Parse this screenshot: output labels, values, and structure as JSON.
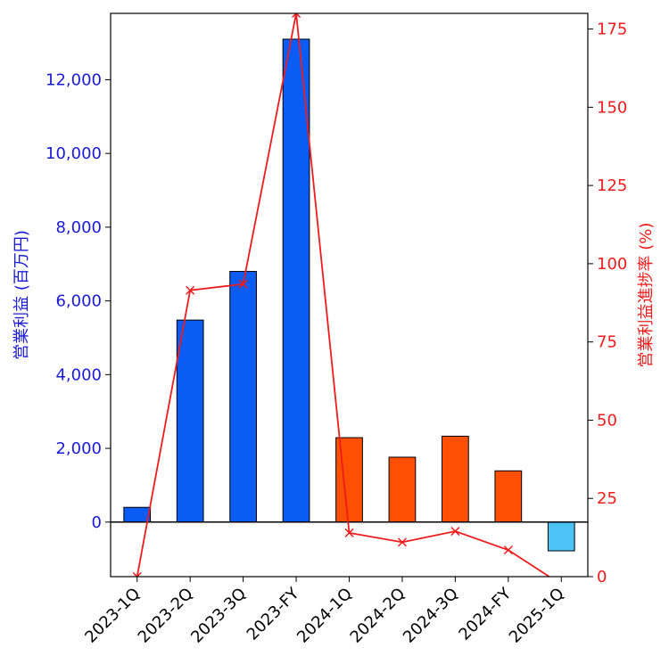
{
  "chart_data": {
    "type": "bar",
    "categories": [
      "2023-1Q",
      "2023-2Q",
      "2023-3Q",
      "2023-FY",
      "2024-1Q",
      "2024-2Q",
      "2024-3Q",
      "2024-FY",
      "2025-1Q"
    ],
    "series": [
      {
        "kind": "bar",
        "axis": "left",
        "values": [
          400,
          5480,
          6800,
          13100,
          2290,
          1760,
          2330,
          1390,
          -780
        ],
        "colors": [
          "#0a5cf5",
          "#0a5cf5",
          "#0a5cf5",
          "#0a5cf5",
          "#ff4f00",
          "#ff4f00",
          "#ff4f00",
          "#ff4f00",
          "#4cc3f5"
        ]
      },
      {
        "kind": "line",
        "axis": "right",
        "marker": "x",
        "color": "#ee1c1c",
        "values": [
          0,
          91.5,
          93.5,
          180,
          14,
          11,
          14.5,
          8.5,
          -2.5
        ]
      }
    ],
    "ylabel": "営業利益 (百万円)",
    "y2label": "営業利益進捗率 (%)",
    "ylim": [
      -1480,
      13800
    ],
    "y2lim": [
      0,
      180
    ],
    "yticks": [
      0,
      2000,
      4000,
      6000,
      8000,
      10000,
      12000
    ],
    "ytick_labels": [
      "0",
      "2,000",
      "4,000",
      "6,000",
      "8,000",
      "10,000",
      "12,000"
    ],
    "y2ticks": [
      0,
      25,
      50,
      75,
      100,
      125,
      150,
      175
    ],
    "y2tick_labels": [
      "0",
      "25",
      "50",
      "75",
      "100",
      "125",
      "150",
      "175"
    ],
    "left_axis_color": "#1a1ad6",
    "right_axis_color": "#ee1c1c",
    "grid": false,
    "zero_line": true
  }
}
